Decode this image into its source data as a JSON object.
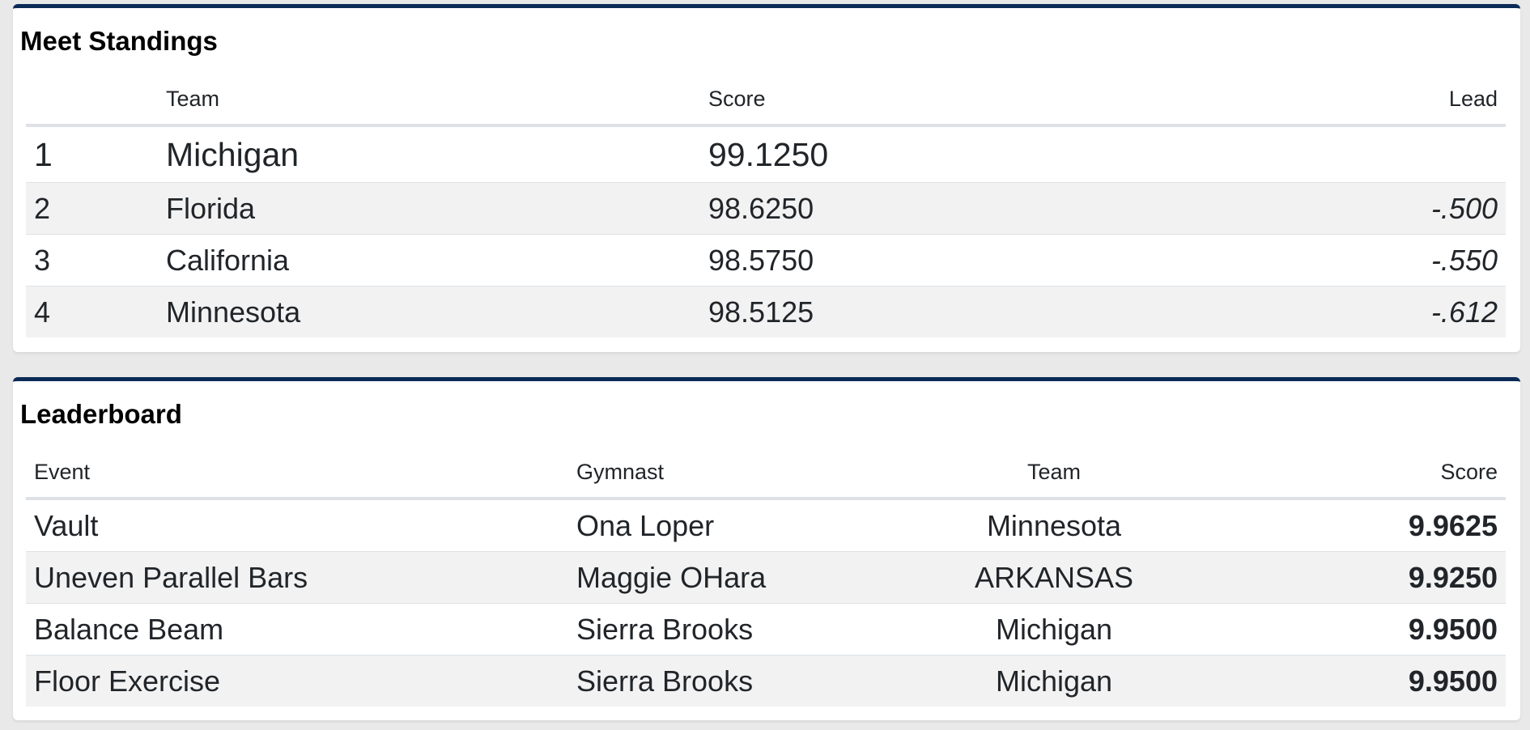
{
  "standings": {
    "title": "Meet Standings",
    "headers": {
      "rank": "",
      "team": "Team",
      "score": "Score",
      "lead": "Lead"
    },
    "rows": [
      {
        "rank": "1",
        "team": "Michigan",
        "score": "99.1250",
        "lead": ""
      },
      {
        "rank": "2",
        "team": "Florida",
        "score": "98.6250",
        "lead": "-.500"
      },
      {
        "rank": "3",
        "team": "California",
        "score": "98.5750",
        "lead": "-.550"
      },
      {
        "rank": "4",
        "team": "Minnesota",
        "score": "98.5125",
        "lead": "-.612"
      }
    ]
  },
  "leaderboard": {
    "title": "Leaderboard",
    "headers": {
      "event": "Event",
      "gymnast": "Gymnast",
      "team": "Team",
      "score": "Score"
    },
    "rows": [
      {
        "event": "Vault",
        "gymnast": "Ona Loper",
        "team": "Minnesota",
        "score": "9.9625"
      },
      {
        "event": "Uneven Parallel Bars",
        "gymnast": "Maggie OHara",
        "team": "ARKANSAS",
        "score": "9.9250"
      },
      {
        "event": "Balance Beam",
        "gymnast": "Sierra Brooks",
        "team": "Michigan",
        "score": "9.9500"
      },
      {
        "event": "Floor Exercise",
        "gymnast": "Sierra Brooks",
        "team": "Michigan",
        "score": "9.9500"
      }
    ]
  },
  "colors": {
    "accent": "#0b2b57",
    "background": "#e9e9e9",
    "stripe": "#f2f2f2"
  }
}
